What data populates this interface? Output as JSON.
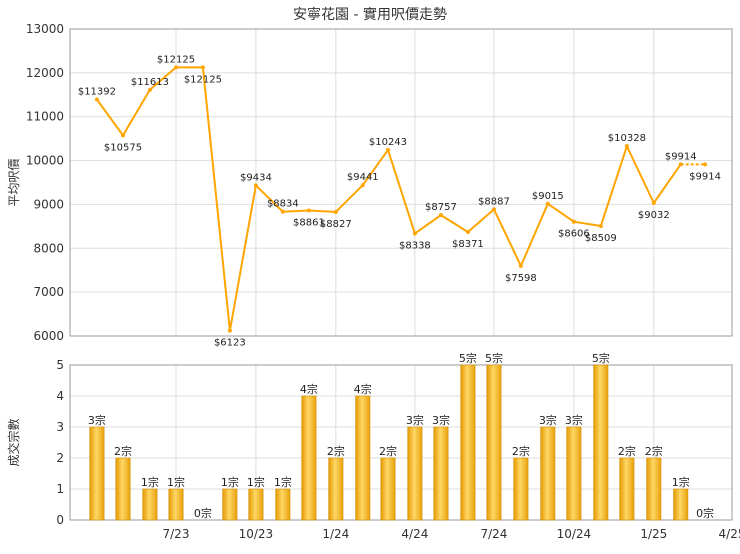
{
  "chart_data": [
    {
      "type": "line",
      "title": "安寧花園 - 實用呎價走勢",
      "ylabel": "平均呎價",
      "xlabel": "",
      "ylim": [
        6000,
        13000
      ],
      "yticks": [
        6000,
        7000,
        8000,
        9000,
        10000,
        11000,
        12000,
        13000
      ],
      "grid": true,
      "color": "#FFA500",
      "points": [
        {
          "x": "2023-04",
          "y": 11392,
          "label": "$11392"
        },
        {
          "x": "2023-05",
          "y": 10575,
          "label": "$10575"
        },
        {
          "x": "2023-06",
          "y": 11613,
          "label": "$11613"
        },
        {
          "x": "2023-07",
          "y": 12125,
          "label": "$12125"
        },
        {
          "x": "2023-08",
          "y": 12125,
          "label": "$12125"
        },
        {
          "x": "2023-09",
          "y": 6123,
          "label": "$6123"
        },
        {
          "x": "2023-10",
          "y": 9434,
          "label": "$9434"
        },
        {
          "x": "2023-11",
          "y": 8834,
          "label": "$8834"
        },
        {
          "x": "2023-12",
          "y": 8861,
          "label": "$8861"
        },
        {
          "x": "2024-01",
          "y": 8827,
          "label": "$8827"
        },
        {
          "x": "2024-02",
          "y": 9441,
          "label": "$9441"
        },
        {
          "x": "2024-03",
          "y": 10243,
          "label": "$10243"
        },
        {
          "x": "2024-04",
          "y": 8338,
          "label": "$8338"
        },
        {
          "x": "2024-05",
          "y": 8757,
          "label": "$8757"
        },
        {
          "x": "2024-06",
          "y": 8371,
          "label": "$8371"
        },
        {
          "x": "2024-07",
          "y": 8887,
          "label": "$8887"
        },
        {
          "x": "2024-08",
          "y": 7598,
          "label": "$7598"
        },
        {
          "x": "2024-09",
          "y": 9015,
          "label": "$9015"
        },
        {
          "x": "2024-10",
          "y": 8606,
          "label": "$8606"
        },
        {
          "x": "2024-11",
          "y": 8509,
          "label": "$8509"
        },
        {
          "x": "2024-12",
          "y": 10328,
          "label": "$10328"
        },
        {
          "x": "2025-01",
          "y": 9032,
          "label": "$9032"
        },
        {
          "x": "2025-02",
          "y": 9914,
          "label": "$9914"
        },
        {
          "x": "2025-03",
          "y": 9914,
          "label": "$9914"
        }
      ]
    },
    {
      "type": "bar",
      "ylabel": "成交宗數",
      "xlabel": "",
      "ylim": [
        0,
        5
      ],
      "yticks": [
        0,
        1,
        2,
        3,
        4,
        5
      ],
      "grid": true,
      "color": "#F5B320",
      "xticks": [
        {
          "x": "2023-07",
          "label": "7/23"
        },
        {
          "x": "2023-10",
          "label": "10/23"
        },
        {
          "x": "2024-01",
          "label": "1/24"
        },
        {
          "x": "2024-04",
          "label": "4/24"
        },
        {
          "x": "2024-07",
          "label": "7/24"
        },
        {
          "x": "2024-10",
          "label": "10/24"
        },
        {
          "x": "2025-01",
          "label": "1/25"
        },
        {
          "x": "2025-04",
          "label": "4/25"
        }
      ],
      "bars": [
        {
          "x": "2023-04",
          "value": 3,
          "label": "3宗"
        },
        {
          "x": "2023-05",
          "value": 2,
          "label": "2宗"
        },
        {
          "x": "2023-06",
          "value": 1,
          "label": "1宗"
        },
        {
          "x": "2023-07",
          "value": 1,
          "label": "1宗"
        },
        {
          "x": "2023-08",
          "value": 0,
          "label": "0宗"
        },
        {
          "x": "2023-09",
          "value": 1,
          "label": "1宗"
        },
        {
          "x": "2023-10",
          "value": 1,
          "label": "1宗"
        },
        {
          "x": "2023-11",
          "value": 1,
          "label": "1宗"
        },
        {
          "x": "2023-12",
          "value": 4,
          "label": "4宗"
        },
        {
          "x": "2024-01",
          "value": 2,
          "label": "2宗"
        },
        {
          "x": "2024-02",
          "value": 4,
          "label": "4宗"
        },
        {
          "x": "2024-03",
          "value": 2,
          "label": "2宗"
        },
        {
          "x": "2024-04",
          "value": 3,
          "label": "3宗"
        },
        {
          "x": "2024-05",
          "value": 3,
          "label": "3宗"
        },
        {
          "x": "2024-06",
          "value": 5,
          "label": "5宗"
        },
        {
          "x": "2024-07",
          "value": 5,
          "label": "5宗"
        },
        {
          "x": "2024-08",
          "value": 2,
          "label": "2宗"
        },
        {
          "x": "2024-09",
          "value": 3,
          "label": "3宗"
        },
        {
          "x": "2024-10",
          "value": 3,
          "label": "3宗"
        },
        {
          "x": "2024-11",
          "value": 5,
          "label": "5宗"
        },
        {
          "x": "2024-12",
          "value": 2,
          "label": "2宗"
        },
        {
          "x": "2025-01",
          "value": 2,
          "label": "2宗"
        },
        {
          "x": "2025-02",
          "value": 1,
          "label": "1宗"
        },
        {
          "x": "2025-03",
          "value": 0,
          "label": "0宗"
        }
      ]
    }
  ]
}
